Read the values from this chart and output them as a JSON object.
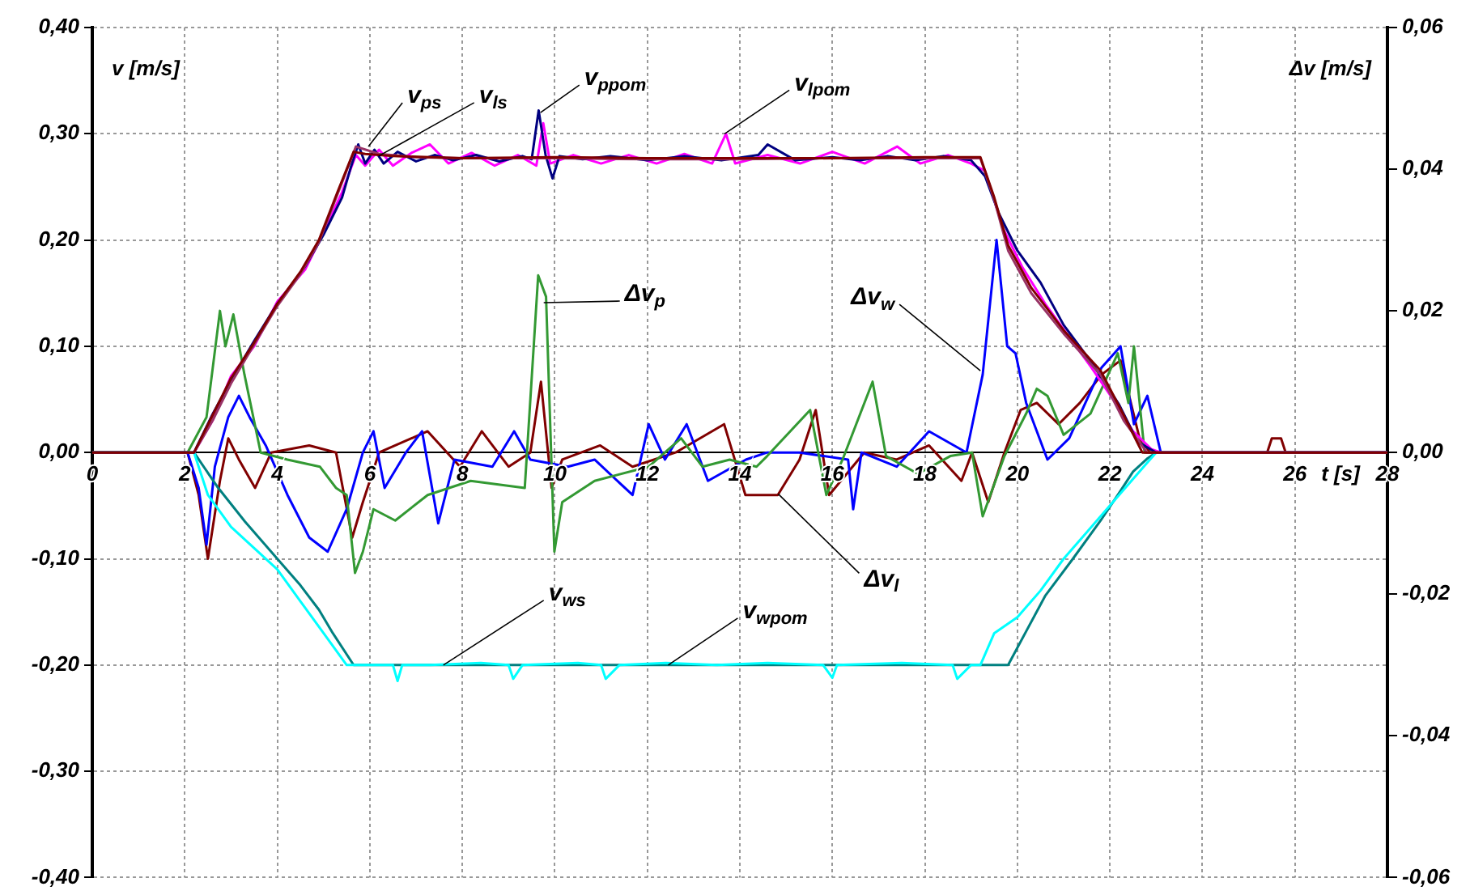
{
  "chart_data": {
    "type": "line",
    "xlabel": "t [s]",
    "ylabel": "v [m/s]",
    "y2label": "Δv [m/s]",
    "xlim": [
      0,
      28
    ],
    "xticks": [
      0,
      2,
      4,
      6,
      8,
      10,
      12,
      14,
      16,
      18,
      20,
      22,
      24,
      26,
      28
    ],
    "ylim": [
      -0.4,
      0.4
    ],
    "yticks": [
      {
        "value": 0.4,
        "label": "0,40"
      },
      {
        "value": 0.3,
        "label": "0,30"
      },
      {
        "value": 0.2,
        "label": "0,20"
      },
      {
        "value": 0.1,
        "label": "0,10"
      },
      {
        "value": 0,
        "label": "0,00"
      },
      {
        "value": -0.1,
        "label": "-0,10"
      },
      {
        "value": -0.2,
        "label": "-0,20"
      },
      {
        "value": -0.3,
        "label": "-0,30"
      },
      {
        "value": -0.4,
        "label": "-0,40"
      }
    ],
    "y2lim": [
      -0.06,
      0.06
    ],
    "y2ticks": [
      {
        "value": 0.06,
        "label": "0,06"
      },
      {
        "value": 0.04,
        "label": "0,04"
      },
      {
        "value": 0.02,
        "label": "0,02"
      },
      {
        "value": 0,
        "label": "0,00"
      },
      {
        "value": -0.02,
        "label": "-0,02"
      },
      {
        "value": -0.04,
        "label": "-0,04"
      },
      {
        "value": -0.06,
        "label": "-0,06"
      }
    ],
    "grid": true,
    "legend": false,
    "marker": "none",
    "series": [
      {
        "color": "#800000",
        "x": [
          0,
          2.2,
          2.6,
          3.0,
          3.45,
          4.0,
          4.5,
          4.9,
          5.3,
          5.65,
          5.9,
          6.5,
          8,
          10,
          12,
          14,
          16,
          18,
          19.2,
          19.5,
          19.8,
          20.3,
          21.0,
          21.8,
          22.3,
          22.7,
          23,
          28
        ],
        "values": [
          0,
          0,
          0.035,
          0.07,
          0.1,
          0.14,
          0.17,
          0.2,
          0.245,
          0.283,
          0.281,
          0.279,
          0.277,
          0.278,
          0.277,
          0.277,
          0.277,
          0.278,
          0.278,
          0.24,
          0.195,
          0.155,
          0.115,
          0.077,
          0.035,
          0,
          0,
          0
        ]
      },
      {
        "color": "#993366",
        "x": [
          0,
          2.2,
          2.6,
          3.0,
          3.45,
          4.0,
          4.5,
          4.9,
          5.3,
          5.7,
          6.2,
          7,
          8,
          10,
          12,
          14,
          16,
          18,
          19.2,
          19.5,
          19.8,
          20.3,
          21.0,
          21.8,
          22.3,
          22.8,
          23,
          28
        ],
        "values": [
          0,
          0,
          0.03,
          0.065,
          0.098,
          0.138,
          0.168,
          0.198,
          0.243,
          0.288,
          0.281,
          0.278,
          0.277,
          0.277,
          0.276,
          0.276,
          0.277,
          0.277,
          0.277,
          0.238,
          0.19,
          0.15,
          0.112,
          0.073,
          0.03,
          0,
          0,
          0
        ]
      },
      {
        "color": "#000080",
        "x": [
          0,
          2.2,
          2.6,
          3.0,
          3.5,
          4.0,
          4.6,
          5.0,
          5.4,
          5.6,
          5.75,
          5.9,
          6.1,
          6.3,
          6.6,
          7.0,
          7.4,
          7.8,
          8.3,
          8.8,
          9.3,
          9.5,
          9.65,
          9.8,
          9.95,
          10.1,
          10.6,
          11.2,
          12,
          12.8,
          13.6,
          14.4,
          14.6,
          15.2,
          16,
          16.6,
          17.2,
          17.8,
          18.4,
          19,
          19.3,
          19.6,
          20.0,
          20.5,
          21.0,
          21.6,
          22.2,
          22.6,
          23,
          28
        ],
        "values": [
          0,
          0,
          0.036,
          0.068,
          0.105,
          0.14,
          0.175,
          0.205,
          0.24,
          0.27,
          0.29,
          0.272,
          0.285,
          0.272,
          0.283,
          0.274,
          0.28,
          0.275,
          0.28,
          0.274,
          0.279,
          0.276,
          0.322,
          0.28,
          0.258,
          0.279,
          0.276,
          0.279,
          0.275,
          0.279,
          0.275,
          0.28,
          0.29,
          0.275,
          0.278,
          0.275,
          0.279,
          0.275,
          0.279,
          0.275,
          0.26,
          0.225,
          0.19,
          0.16,
          0.12,
          0.085,
          0.045,
          0.01,
          0,
          0
        ]
      },
      {
        "color": "#ff00ff",
        "x": [
          2.2,
          2.6,
          3.0,
          3.5,
          4.0,
          4.6,
          5.0,
          5.4,
          5.7,
          5.9,
          6.2,
          6.5,
          6.9,
          7.3,
          7.7,
          8.2,
          8.7,
          9.2,
          9.6,
          9.75,
          9.9,
          10.4,
          11,
          11.6,
          12.2,
          12.8,
          13.4,
          13.7,
          13.9,
          14.6,
          15.3,
          16,
          16.7,
          17.4,
          17.9,
          18.5,
          19,
          19.3,
          19.7,
          20.1,
          20.6,
          21.1,
          21.6,
          22.1,
          22.5,
          22.9,
          23.1,
          28
        ],
        "values": [
          0,
          0.03,
          0.072,
          0.1,
          0.142,
          0.172,
          0.207,
          0.245,
          0.28,
          0.27,
          0.285,
          0.27,
          0.282,
          0.29,
          0.272,
          0.282,
          0.27,
          0.28,
          0.27,
          0.31,
          0.272,
          0.28,
          0.272,
          0.28,
          0.272,
          0.281,
          0.272,
          0.3,
          0.272,
          0.28,
          0.272,
          0.283,
          0.272,
          0.288,
          0.272,
          0.28,
          0.272,
          0.265,
          0.21,
          0.175,
          0.14,
          0.11,
          0.08,
          0.048,
          0.02,
          0.003,
          0,
          0
        ]
      },
      {
        "color": "#00ffff",
        "x": [
          0,
          2.2,
          2.5,
          3.0,
          3.5,
          4.0,
          4.5,
          5.0,
          5.5,
          6.2,
          6.5,
          6.6,
          6.7,
          7.3,
          8.4,
          9.0,
          9.1,
          9.3,
          10.5,
          11.0,
          11.1,
          11.4,
          12.4,
          13.5,
          14.6,
          15.8,
          16.0,
          16.1,
          17.5,
          18.6,
          18.7,
          19.0,
          19.2,
          19.5,
          20.0,
          20.5,
          21.0,
          21.5,
          22.0,
          22.4,
          22.8,
          23,
          28
        ],
        "values": [
          0,
          0,
          -0.04,
          -0.07,
          -0.09,
          -0.11,
          -0.14,
          -0.17,
          -0.2,
          -0.2,
          -0.2,
          -0.215,
          -0.2,
          -0.2,
          -0.198,
          -0.2,
          -0.213,
          -0.2,
          -0.198,
          -0.2,
          -0.213,
          -0.2,
          -0.198,
          -0.2,
          -0.198,
          -0.2,
          -0.212,
          -0.2,
          -0.198,
          -0.2,
          -0.213,
          -0.2,
          -0.2,
          -0.17,
          -0.155,
          -0.13,
          -0.1,
          -0.075,
          -0.05,
          -0.03,
          -0.01,
          0,
          0
        ]
      },
      {
        "color": "#008080",
        "x": [
          0,
          2.2,
          2.7,
          3.3,
          4.0,
          4.5,
          4.9,
          5.2,
          5.65,
          10,
          15,
          19.8,
          20.6,
          21.2,
          21.8,
          22.2,
          22.5,
          22.8,
          23,
          28
        ],
        "values": [
          0,
          0,
          -0.032,
          -0.065,
          -0.1,
          -0.125,
          -0.148,
          -0.17,
          -0.2,
          -0.2,
          -0.2,
          -0.2,
          -0.135,
          -0.1,
          -0.064,
          -0.038,
          -0.018,
          -0.006,
          0,
          0
        ]
      },
      {
        "color": "#339933",
        "axis": "y2",
        "x": [
          0,
          2.06,
          2.47,
          2.76,
          2.88,
          3.05,
          3.29,
          3.64,
          4.22,
          4.92,
          5.27,
          5.5,
          5.68,
          5.85,
          6.08,
          6.55,
          7.25,
          8.18,
          9.35,
          9.64,
          9.81,
          9.99,
          10.16,
          10.86,
          12.03,
          12.73,
          13.19,
          13.78,
          14.36,
          14.59,
          15.52,
          15.87,
          16.22,
          16.87,
          17.16,
          17.85,
          18.55,
          19.02,
          19.25,
          19.72,
          20.19,
          20.42,
          20.65,
          21.0,
          21.58,
          22.17,
          22.4,
          22.52,
          22.75,
          23.1,
          28
        ],
        "values": [
          0,
          0,
          0.005,
          0.02,
          0.015,
          0.0195,
          0.011,
          0,
          -0.001,
          -0.002,
          -0.005,
          -0.006,
          -0.017,
          -0.014,
          -0.008,
          -0.0096,
          -0.006,
          -0.004,
          -0.005,
          0.025,
          0.022,
          -0.014,
          -0.007,
          -0.004,
          -0.002,
          0.002,
          -0.002,
          -0.001,
          -0.002,
          -0.0005,
          0.006,
          -0.006,
          -0.001,
          0.01,
          -0.0005,
          -0.003,
          -0.0005,
          0,
          -0.009,
          -0.0005,
          0.0055,
          0.009,
          0.008,
          0.0025,
          0.0055,
          0.014,
          0.007,
          0.015,
          0,
          0,
          0
        ]
      },
      {
        "color": "#0000ff",
        "axis": "y2",
        "x": [
          0,
          2.06,
          2.3,
          2.47,
          2.65,
          2.94,
          3.17,
          3.4,
          3.75,
          4.22,
          4.69,
          5.09,
          5.5,
          5.85,
          6.08,
          6.32,
          6.78,
          7.13,
          7.48,
          7.83,
          8.65,
          9.12,
          9.47,
          10.28,
          10.86,
          11.68,
          12.03,
          12.38,
          12.85,
          13.31,
          14.13,
          14.59,
          15.29,
          16.34,
          16.45,
          16.63,
          17.39,
          18.09,
          18.9,
          19.25,
          19.55,
          19.78,
          19.96,
          20.19,
          20.65,
          21.12,
          21.82,
          22.23,
          22.52,
          22.81,
          23.1,
          28
        ],
        "values": [
          0,
          0,
          -0.005,
          -0.013,
          -0.002,
          0.005,
          0.008,
          0.005,
          0.001,
          -0.006,
          -0.012,
          -0.014,
          -0.008,
          0,
          0.003,
          -0.005,
          0,
          0.003,
          -0.01,
          -0.001,
          -0.002,
          0.003,
          -0.001,
          -0.002,
          -0.001,
          -0.006,
          0.004,
          -0.001,
          0.004,
          -0.004,
          -0.001,
          0,
          0,
          -0.001,
          -0.008,
          0,
          -0.002,
          0.003,
          0,
          0.011,
          0.03,
          0.015,
          0.014,
          0.007,
          -0.001,
          0.002,
          0.012,
          0.015,
          0.004,
          0.008,
          0,
          0
        ]
      },
      {
        "color": "#800000",
        "axis": "y2",
        "x": [
          0,
          2.06,
          2.3,
          2.5,
          2.76,
          2.94,
          3.17,
          3.52,
          3.87,
          4.69,
          5.27,
          5.62,
          5.85,
          6.2,
          7.25,
          7.95,
          8.42,
          9.0,
          9.47,
          9.7,
          9.93,
          10.16,
          10.98,
          11.68,
          12.61,
          13.66,
          14.12,
          14.82,
          15.29,
          15.64,
          15.93,
          16.69,
          17.39,
          18.09,
          18.79,
          19.02,
          19.37,
          19.72,
          20.07,
          20.42,
          20.89,
          21.35,
          21.82,
          22.23,
          22.64,
          22.87,
          25.4,
          25.5,
          25.7,
          25.8,
          28
        ],
        "values": [
          0,
          0,
          -0.006,
          -0.015,
          -0.004,
          0.002,
          -0.001,
          -0.005,
          0,
          0.001,
          0,
          -0.012,
          -0.007,
          0,
          0.003,
          -0.002,
          0.003,
          -0.002,
          0,
          0.01,
          -0.005,
          -0.001,
          0.001,
          -0.002,
          0,
          0.004,
          -0.006,
          -0.006,
          -0.001,
          0.006,
          -0.006,
          0,
          -0.001,
          0.001,
          -0.004,
          0,
          -0.007,
          0,
          0.006,
          0.007,
          0.004,
          0.007,
          0.011,
          0.013,
          0.002,
          0,
          0,
          0.002,
          0.002,
          0,
          0
        ]
      }
    ],
    "annotations": [
      {
        "text": "v$_{ps}$",
        "x": 5.97,
        "y": 0.288
      },
      {
        "text": "v$_{ls}$",
        "x": 6.19,
        "y": 0.279
      },
      {
        "text": "v$_{ppom}$",
        "x": 9.69,
        "y": 0.32
      },
      {
        "text": "v$_{lpom}$",
        "x": 13.67,
        "y": 0.3
      },
      {
        "text": "Δv$_{p}$",
        "x": 9.76,
        "y": 0.141
      },
      {
        "text": "Δv$_{w}$",
        "x": 19.2,
        "y": 0.077
      },
      {
        "text": "Δv$_{l}$",
        "x": 14.83,
        "y": -0.039
      },
      {
        "text": "v$_{ws}$",
        "x": 7.59,
        "y": -0.2
      },
      {
        "text": "v$_{wpom}$",
        "x": 12.45,
        "y": -0.2
      }
    ]
  }
}
